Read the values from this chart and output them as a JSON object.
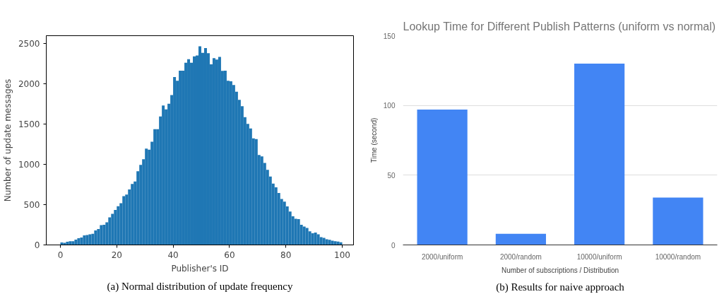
{
  "chart_data": [
    {
      "type": "histogram",
      "xlabel": "Publisher's ID",
      "ylabel": "Number of update messages",
      "color": "#1f77b4",
      "bins": [
        0,
        1,
        2,
        3,
        4,
        5,
        6,
        7,
        8,
        9,
        10,
        11,
        12,
        13,
        14,
        15,
        16,
        17,
        18,
        19,
        20,
        21,
        22,
        23,
        24,
        25,
        26,
        27,
        28,
        29,
        30,
        31,
        32,
        33,
        34,
        35,
        36,
        37,
        38,
        39,
        40,
        41,
        42,
        43,
        44,
        45,
        46,
        47,
        48,
        49,
        50,
        51,
        52,
        53,
        54,
        55,
        56,
        57,
        58,
        59,
        60,
        61,
        62,
        63,
        64,
        65,
        66,
        67,
        68,
        69,
        70,
        71,
        72,
        73,
        74,
        75,
        76,
        77,
        78,
        79,
        80,
        81,
        82,
        83,
        84,
        85,
        86,
        87,
        88,
        89,
        90,
        91,
        92,
        93,
        94,
        95,
        96,
        97,
        98,
        99,
        100
      ],
      "values": [
        30,
        26,
        40,
        47,
        47,
        66,
        84,
        92,
        118,
        124,
        132,
        139,
        179,
        197,
        245,
        250,
        282,
        342,
        387,
        434,
        482,
        518,
        605,
        626,
        689,
        758,
        789,
        916,
        995,
        1066,
        1197,
        1184,
        1282,
        1439,
        1439,
        1597,
        1732,
        1684,
        1755,
        1863,
        2087,
        2039,
        2166,
        2166,
        2263,
        2308,
        2263,
        2342,
        2355,
        2468,
        2387,
        2447,
        2382,
        2245,
        2321,
        2303,
        2337,
        2163,
        2166,
        2039,
        2034,
        1987,
        1903,
        1803,
        1724,
        1587,
        1505,
        1447,
        1324,
        1316,
        1118,
        1100,
        1018,
        934,
        850,
        763,
        716,
        645,
        571,
        539,
        479,
        416,
        355,
        324,
        321,
        250,
        229,
        211,
        168,
        145,
        153,
        132,
        97,
        87,
        71,
        63,
        53,
        47,
        42,
        34
      ],
      "xlim": [
        -5,
        104
      ],
      "xticks": [
        0,
        20,
        40,
        60,
        80,
        100
      ],
      "ylim": [
        0,
        2600
      ],
      "yticks": [
        0,
        500,
        1000,
        1500,
        2000,
        2500
      ],
      "grid": false,
      "annotations": [
        "(a) Normal distribution of update frequency"
      ]
    },
    {
      "type": "bar",
      "title": "Lookup Time for Different Publish Patterns (uniform vs normal)",
      "xlabel": "Number of subscriptions / Distribution",
      "ylabel": "Time (second)",
      "color": "#4285f4",
      "categories": [
        "2000/uniform",
        "2000/random",
        "10000/uniform",
        "10000/random"
      ],
      "values": [
        97,
        8,
        130,
        34
      ],
      "ylim": [
        0,
        150
      ],
      "yticks": [
        0,
        50,
        100,
        150
      ],
      "grid": "y",
      "annotations": [
        "(b) Results for naive approach"
      ]
    }
  ]
}
